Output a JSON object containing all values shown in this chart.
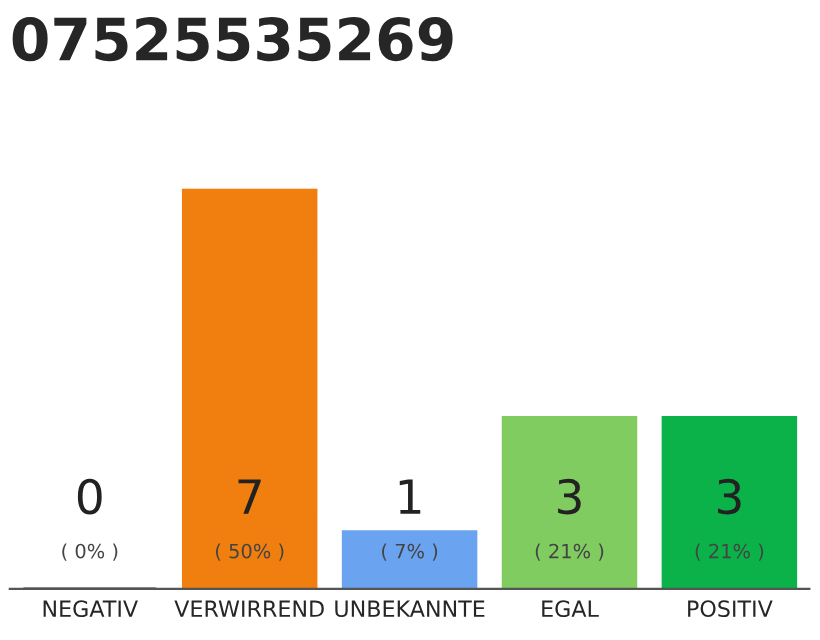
{
  "chart_data": {
    "type": "bar",
    "title": "07525535269",
    "categories": [
      "NEGATIV",
      "VERWIRREND",
      "UNBEKANNTE",
      "EGAL",
      "POSITIV"
    ],
    "values": [
      0,
      7,
      1,
      3,
      3
    ],
    "colors": [
      "#333333",
      "#f07f0f",
      "#6aa3f0",
      "#80cc60",
      "#0bb24a"
    ],
    "ylim": [
      0,
      7
    ],
    "tick_labels": "x",
    "data_labels": true,
    "annotations": [
      "( 0% )",
      "( 50% )",
      "( 7% )",
      "( 21% )",
      "( 21% )"
    ]
  }
}
